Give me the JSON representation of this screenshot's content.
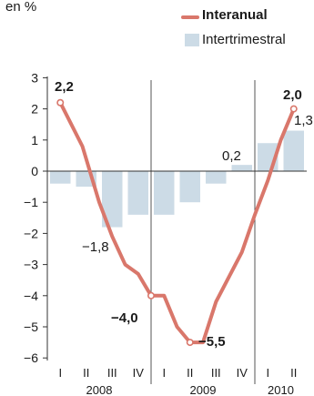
{
  "unit_label": "en %",
  "legend": [
    {
      "label": "Interanual",
      "kind": "line",
      "color": "#d9776b"
    },
    {
      "label": "Intertrimestral",
      "kind": "bar",
      "color": "#ccdbe6"
    }
  ],
  "chart_data": {
    "type": "bar+line",
    "categories": [
      "I",
      "II",
      "III",
      "IV",
      "I",
      "II",
      "III",
      "IV",
      "I",
      "II"
    ],
    "years": [
      {
        "label": "2008",
        "start": 0,
        "end": 3
      },
      {
        "label": "2009",
        "start": 4,
        "end": 7
      },
      {
        "label": "2010",
        "start": 8,
        "end": 9
      }
    ],
    "ylim": [
      -6,
      3
    ],
    "yticks": [
      3,
      2,
      1,
      0,
      -1,
      -2,
      -3,
      -4,
      -5,
      -6
    ],
    "ytick_labels": [
      "3",
      "2",
      "1",
      "0",
      "−1",
      "−2",
      "−3",
      "−4",
      "−5",
      "−6"
    ],
    "bars": {
      "name": "Intertrimestral",
      "values": [
        -0.4,
        -0.5,
        -1.8,
        -1.4,
        -1.4,
        -1.0,
        -0.4,
        0.2,
        0.9,
        1.3
      ],
      "color": "#ccdbe6"
    },
    "line": {
      "name": "Interanual",
      "color": "#d9776b",
      "x": [
        0,
        0.85,
        1.5,
        2,
        2.5,
        3,
        3.5,
        4,
        4.5,
        5,
        5.5,
        6,
        6.5,
        7,
        7.5,
        8,
        8.5,
        9
      ],
      "y": [
        2.2,
        0.8,
        -1.0,
        -2.1,
        -3.0,
        -3.3,
        -4.0,
        -4.0,
        -5.0,
        -5.5,
        -5.5,
        -4.2,
        -3.4,
        -2.6,
        -1.4,
        -0.3,
        1.0,
        2.0
      ],
      "markers": [
        0,
        6,
        9,
        17
      ]
    },
    "annotations": [
      {
        "text": "2,2",
        "bold": true
      },
      {
        "text": "−1,8",
        "bold": false
      },
      {
        "text": "−4,0",
        "bold": true
      },
      {
        "text": "−5,5",
        "bold": true
      },
      {
        "text": "0,2",
        "bold": false
      },
      {
        "text": "2,0",
        "bold": true
      },
      {
        "text": "1,3",
        "bold": false
      }
    ],
    "title": "",
    "xlabel": "",
    "ylabel": ""
  }
}
